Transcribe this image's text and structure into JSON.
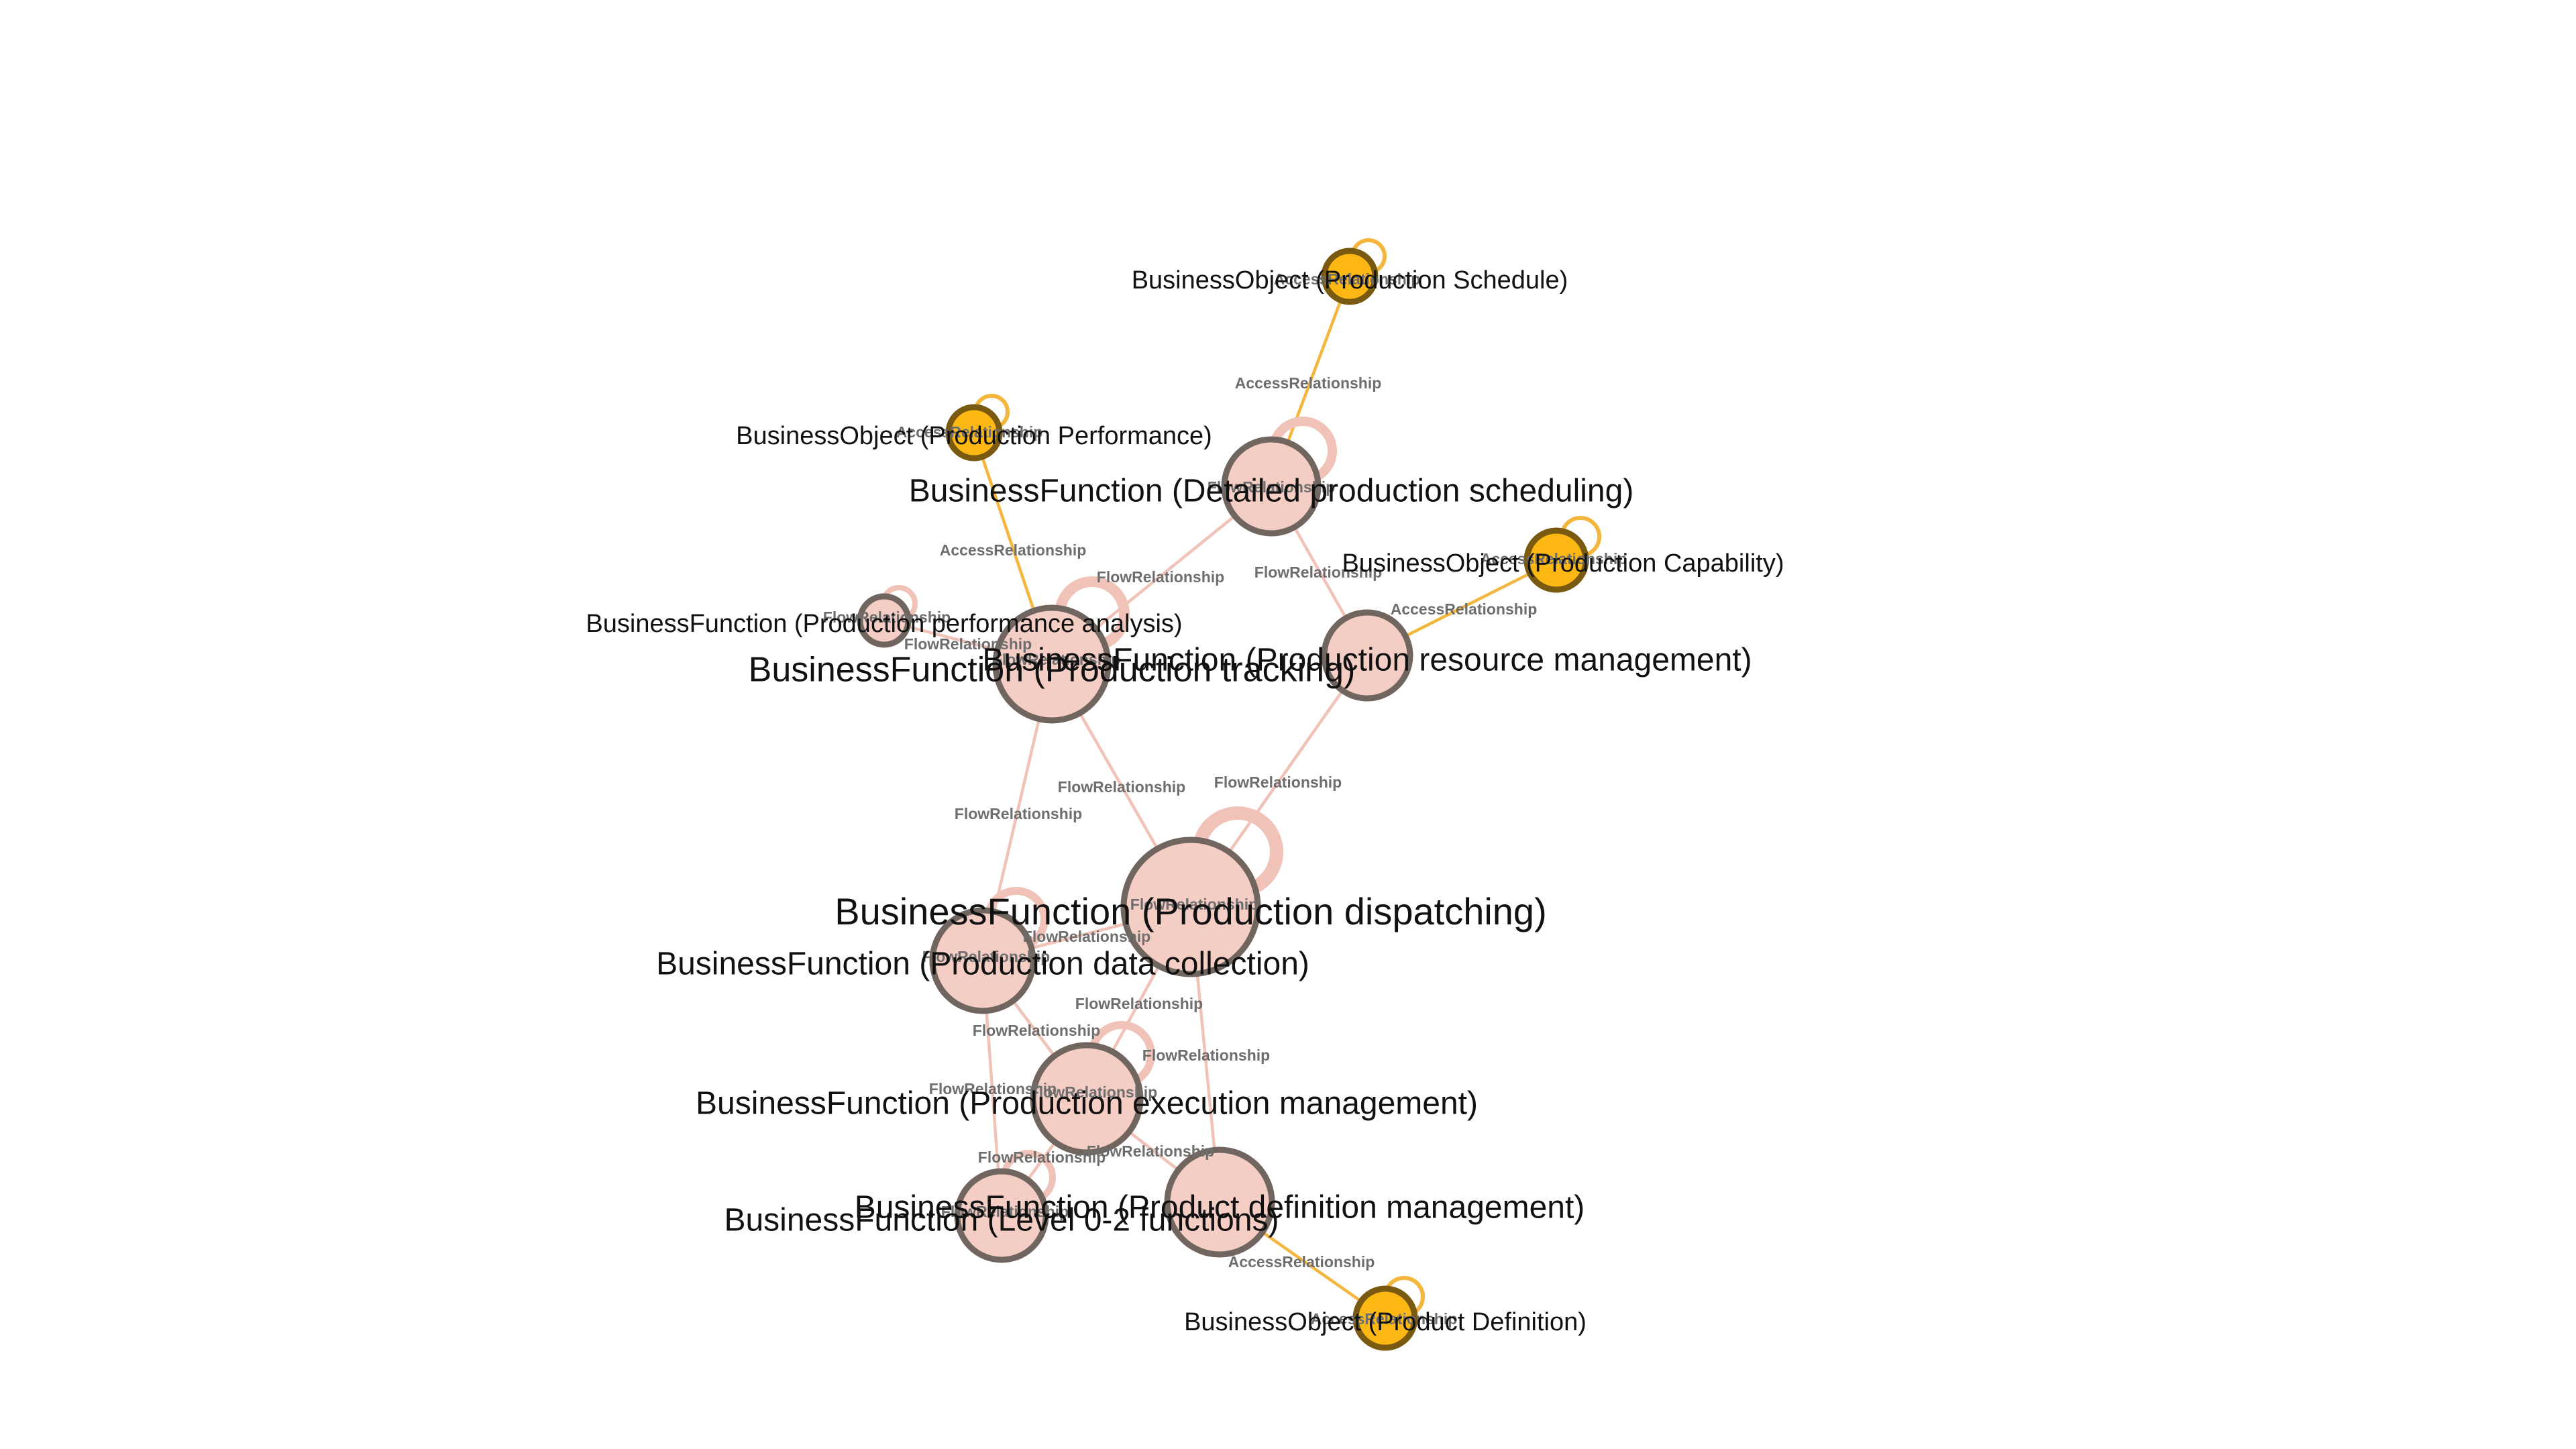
{
  "graph": {
    "colors": {
      "function_fill": "#f4cdc4",
      "function_stroke": "#716560",
      "object_fill": "#fdb813",
      "object_stroke": "#7a5a10",
      "flow_edge": "#f1c3b8",
      "access_edge": "#f4b63c",
      "edge_label": "#6e6e6e",
      "node_label": "#111111"
    },
    "nodes": [
      {
        "id": "schedule_obj",
        "type": "object",
        "label": "BusinessObject (Production Schedule)"
      },
      {
        "id": "performance_obj",
        "type": "object",
        "label": "BusinessObject (Production Performance)"
      },
      {
        "id": "detailed_sched",
        "type": "function",
        "label": "BusinessFunction (Detailed production scheduling)"
      },
      {
        "id": "capability_obj",
        "type": "object",
        "label": "BusinessObject (Production Capability)"
      },
      {
        "id": "perf_analysis",
        "type": "function",
        "label": "BusinessFunction (Production performance analysis)"
      },
      {
        "id": "tracking",
        "type": "function",
        "label": "BusinessFunction (Production tracking)"
      },
      {
        "id": "resource_mgmt",
        "type": "function",
        "label": "BusinessFunction (Production resource management)"
      },
      {
        "id": "dispatching",
        "type": "function",
        "label": "BusinessFunction (Production dispatching)"
      },
      {
        "id": "data_collection",
        "type": "function",
        "label": "BusinessFunction (Production data collection)"
      },
      {
        "id": "execution_mgmt",
        "type": "function",
        "label": "BusinessFunction (Production execution management)"
      },
      {
        "id": "product_def_mgmt",
        "type": "function",
        "label": "BusinessFunction (Product definition management)"
      },
      {
        "id": "level02",
        "type": "function",
        "label": "BusinessFunction (Level 0-2 functions)"
      },
      {
        "id": "product_def_obj",
        "type": "object",
        "label": "BusinessObject (Product Definition)"
      }
    ],
    "edges": [
      {
        "from": "detailed_sched",
        "to": "schedule_obj",
        "type": "access",
        "label": "AccessRelationship"
      },
      {
        "from": "tracking",
        "to": "performance_obj",
        "type": "access",
        "label": "AccessRelationship"
      },
      {
        "from": "resource_mgmt",
        "to": "capability_obj",
        "type": "access",
        "label": "AccessRelationship"
      },
      {
        "from": "product_def_mgmt",
        "to": "product_def_obj",
        "type": "access",
        "label": "AccessRelationship"
      },
      {
        "from": "tracking",
        "to": "detailed_sched",
        "type": "flow",
        "label": "FlowRelationship"
      },
      {
        "from": "detailed_sched",
        "to": "resource_mgmt",
        "type": "flow",
        "label": "FlowRelationship"
      },
      {
        "from": "perf_analysis",
        "to": "tracking",
        "type": "flow",
        "label": "FlowRelationship"
      },
      {
        "from": "tracking",
        "to": "dispatching",
        "type": "flow",
        "label": "FlowRelationship"
      },
      {
        "from": "tracking",
        "to": "data_collection",
        "type": "flow",
        "label": "FlowRelationship"
      },
      {
        "from": "resource_mgmt",
        "to": "dispatching",
        "type": "flow",
        "label": "FlowRelationship"
      },
      {
        "from": "dispatching",
        "to": "data_collection",
        "type": "flow",
        "label": "FlowRelationship"
      },
      {
        "from": "dispatching",
        "to": "execution_mgmt",
        "type": "flow",
        "label": "FlowRelationship"
      },
      {
        "from": "data_collection",
        "to": "execution_mgmt",
        "type": "flow",
        "label": "FlowRelationship"
      },
      {
        "from": "dispatching",
        "to": "product_def_mgmt",
        "type": "flow",
        "label": "FlowRelationship"
      },
      {
        "from": "execution_mgmt",
        "to": "level02",
        "type": "flow",
        "label": "FlowRelationship"
      },
      {
        "from": "data_collection",
        "to": "level02",
        "type": "flow",
        "label": "FlowRelationship"
      },
      {
        "from": "execution_mgmt",
        "to": "product_def_mgmt",
        "type": "flow",
        "label": "FlowRelationship"
      }
    ],
    "self_loops": [
      {
        "node": "schedule_obj",
        "label": "AccessRelationship"
      },
      {
        "node": "performance_obj",
        "label": "AccessRelationship"
      },
      {
        "node": "capability_obj",
        "label": "AccessRelationship"
      },
      {
        "node": "product_def_obj",
        "label": "AccessRelationship"
      },
      {
        "node": "detailed_sched",
        "label": "FlowRelationship"
      },
      {
        "node": "perf_analysis",
        "label": "FlowRelationship"
      },
      {
        "node": "tracking",
        "label": "FlowRelationship"
      },
      {
        "node": "dispatching",
        "label": "FlowRelationship"
      },
      {
        "node": "data_collection",
        "label": "FlowRelationship"
      },
      {
        "node": "execution_mgmt",
        "label": "FlowRelationship"
      },
      {
        "node": "level02",
        "label": "FlowRelationship"
      }
    ]
  }
}
